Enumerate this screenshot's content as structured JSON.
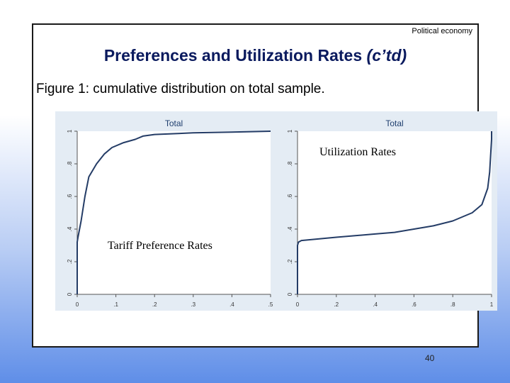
{
  "header": {
    "label": "Political economy"
  },
  "title": {
    "main": "Preferences and Utilization Rates ",
    "suffix": "(c’td)"
  },
  "caption": {
    "text": "Figure 1: cumulative distribution on total sample",
    "period": "."
  },
  "page_number": "40",
  "chart_data": [
    {
      "type": "line",
      "title": "Total",
      "ylabel": "",
      "xlabel": "",
      "xlim": [
        0,
        0.5
      ],
      "ylim": [
        0,
        1
      ],
      "x_ticks": [
        "0",
        ".1",
        ".2",
        ".3",
        ".4",
        ".5"
      ],
      "y_ticks": [
        "0",
        ".2",
        ".4",
        ".6",
        ".8",
        "1"
      ],
      "overlay_label": "Tariff Preference Rates",
      "series": [
        {
          "x": [
            0,
            0,
            0.002,
            0.01,
            0.02,
            0.03,
            0.05,
            0.07,
            0.09,
            0.12,
            0.15,
            0.17,
            0.2,
            0.25,
            0.3,
            0.4,
            0.5
          ],
          "y": [
            0,
            0.32,
            0.35,
            0.45,
            0.6,
            0.72,
            0.8,
            0.86,
            0.9,
            0.93,
            0.95,
            0.97,
            0.98,
            0.985,
            0.99,
            0.995,
            1.0
          ]
        }
      ]
    },
    {
      "type": "line",
      "title": "Total",
      "ylabel": "",
      "xlabel": "",
      "xlim": [
        0,
        1
      ],
      "ylim": [
        0,
        1
      ],
      "x_ticks": [
        "0",
        ".2",
        ".4",
        ".6",
        ".8",
        "1"
      ],
      "y_ticks": [
        "0",
        ".2",
        ".4",
        ".6",
        ".8",
        "1"
      ],
      "overlay_label": "Utilization Rates",
      "series": [
        {
          "x": [
            0,
            0,
            0.005,
            0.02,
            0.2,
            0.4,
            0.5,
            0.6,
            0.7,
            0.8,
            0.9,
            0.95,
            0.98,
            0.99,
            0.995,
            1.0,
            1.0
          ],
          "y": [
            0,
            0.3,
            0.32,
            0.33,
            0.35,
            0.37,
            0.38,
            0.4,
            0.42,
            0.45,
            0.5,
            0.55,
            0.65,
            0.75,
            0.85,
            0.95,
            1.0
          ]
        }
      ]
    }
  ]
}
